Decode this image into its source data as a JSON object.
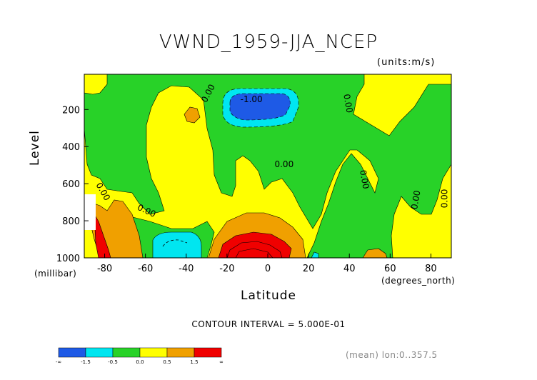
{
  "title": "VWND_1959-JJA_NCEP",
  "units": "(units:m/s)",
  "ylabel": "Level",
  "ylabel_unit": "(millibar)",
  "xlabel": "Latitude",
  "xlabel_unit": "(degrees_north)",
  "contour_interval": "CONTOUR INTERVAL = 5.000E-01",
  "meta": "(mean) lon:0..357.5",
  "colors": {
    "blue": "#1e5ae6",
    "cyan": "#00e6f0",
    "green": "#28d228",
    "yellow": "#ffff00",
    "orange": "#f0a000",
    "red": "#f00000"
  },
  "chart_data": {
    "type": "contour",
    "title": "VWND_1959-JJA_NCEP",
    "xlabel": "Latitude",
    "ylabel": "Level",
    "xlim": [
      -90,
      90
    ],
    "ylim": [
      1000,
      10
    ],
    "x_ticks": [
      "-80",
      "-60",
      "-40",
      "-20",
      "0",
      "20",
      "40",
      "60",
      "80"
    ],
    "x_tick_values": [
      -80,
      -60,
      -40,
      -20,
      0,
      20,
      40,
      60,
      80
    ],
    "y_ticks": [
      "200",
      "400",
      "600",
      "800",
      "1000"
    ],
    "y_tick_values": [
      200,
      400,
      600,
      800,
      1000
    ],
    "contour_interval": 0.5,
    "colorbar_labels": [
      "-∞",
      "-1.5",
      "-0.5",
      "0.0",
      "0.5",
      "1.5",
      "∞"
    ],
    "colorbar_colors": [
      "#1e5ae6",
      "#00e6f0",
      "#28d228",
      "#ffff00",
      "#f0a000",
      "#f00000"
    ],
    "contour_labels": [
      {
        "text": "0.00",
        "lat": -28,
        "lev": 120
      },
      {
        "text": "-1.00",
        "lat": -8,
        "lev": 160
      },
      {
        "text": "0.00",
        "lat": 38,
        "lev": 170
      },
      {
        "text": "0.00",
        "lat": 8,
        "lev": 510
      },
      {
        "text": "0.00",
        "lat": 46,
        "lev": 580
      },
      {
        "text": "0.00",
        "lat": 74,
        "lev": 690
      },
      {
        "text": "0.00",
        "lat": 88,
        "lev": 680
      },
      {
        "text": "0.00",
        "lat": -82,
        "lev": 650
      },
      {
        "text": "0.00",
        "lat": -60,
        "lev": 760
      }
    ]
  }
}
